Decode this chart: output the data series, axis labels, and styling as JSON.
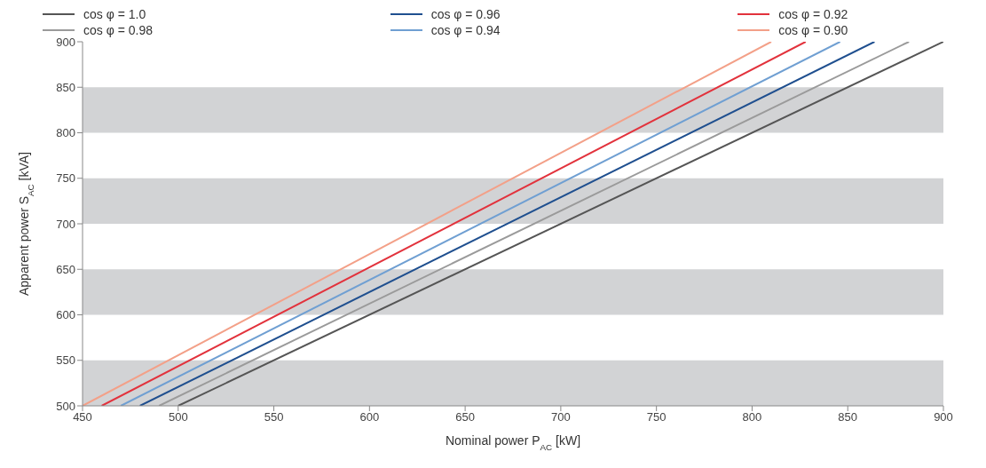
{
  "chart_data": {
    "type": "line",
    "xlabel": "Nominal power P$_{AC}$ [kW]",
    "ylabel": "Apparent power S$_{AC}$ [kVA]",
    "xlim": [
      450,
      900
    ],
    "xticks": [
      450,
      500,
      550,
      600,
      650,
      700,
      750,
      800,
      850,
      900
    ],
    "ylim": [
      500,
      900
    ],
    "yticks": [
      500,
      550,
      600,
      650,
      700,
      750,
      800,
      850,
      900
    ],
    "grid": false,
    "legend": "top",
    "marker": "none",
    "line_style": "solid",
    "bands": [
      {
        "axis": "y",
        "from": 500,
        "to": 550,
        "color": "#d2d3d5"
      },
      {
        "axis": "y",
        "from": 600,
        "to": 650,
        "color": "#d2d3d5"
      },
      {
        "axis": "y",
        "from": 700,
        "to": 750,
        "color": "#d2d3d5"
      },
      {
        "axis": "y",
        "from": 800,
        "to": 850,
        "color": "#d2d3d5"
      }
    ],
    "series": [
      {
        "name": "cos φ = 1.0",
        "color": "#555555",
        "x": [
          500,
          900
        ],
        "values": [
          500,
          900
        ]
      },
      {
        "name": "cos φ = 0.98",
        "color": "#9a9a9a",
        "x": [
          490,
          882
        ],
        "values": [
          500,
          900
        ]
      },
      {
        "name": "cos φ = 0.96",
        "color": "#1f4f8f",
        "x": [
          480,
          864
        ],
        "values": [
          500,
          900
        ]
      },
      {
        "name": "cos φ = 0.94",
        "color": "#6f9fd2",
        "x": [
          470,
          846
        ],
        "values": [
          500,
          900
        ]
      },
      {
        "name": "cos φ = 0.92",
        "color": "#e2323c",
        "x": [
          460,
          828
        ],
        "values": [
          500,
          900
        ]
      },
      {
        "name": "cos φ = 0.90",
        "color": "#f3a088",
        "x": [
          450,
          810
        ],
        "values": [
          500,
          900
        ]
      }
    ]
  }
}
